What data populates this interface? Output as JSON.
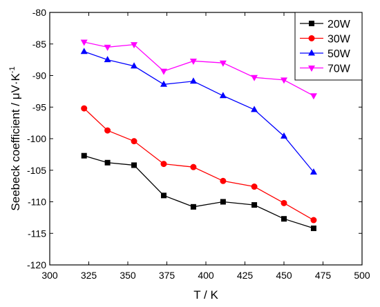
{
  "chart_data": {
    "type": "line",
    "title": "",
    "xlabel": "T / K",
    "ylabel_main": "Seebeck coefficient / μV·K",
    "ylabel_sup": "-1",
    "xlim": [
      300,
      500
    ],
    "ylim": [
      -120,
      -80
    ],
    "xticks": [
      "300",
      "325",
      "350",
      "375",
      "400",
      "425",
      "450",
      "475",
      "500"
    ],
    "yticks": [
      "-80",
      "-85",
      "-90",
      "-95",
      "-100",
      "-105",
      "-110",
      "-115",
      "-120"
    ],
    "x": [
      322,
      337,
      354,
      373,
      392,
      411,
      431,
      450,
      469
    ],
    "grid": false,
    "legend_position": "top-right",
    "series": [
      {
        "name": "20W",
        "color": "#000000",
        "marker": "square",
        "values": [
          -102.7,
          -103.8,
          -104.2,
          -109.0,
          -110.8,
          -110.0,
          -110.5,
          -112.7,
          -114.2
        ]
      },
      {
        "name": "30W",
        "color": "#ff0000",
        "marker": "circle",
        "values": [
          -95.2,
          -98.7,
          -100.4,
          -104.0,
          -104.5,
          -106.7,
          -107.6,
          -110.2,
          -112.9
        ]
      },
      {
        "name": "50W",
        "color": "#0000ff",
        "marker": "triangle-up",
        "values": [
          -86.2,
          -87.5,
          -88.5,
          -91.4,
          -90.9,
          -93.2,
          -95.4,
          -99.6,
          -105.3
        ]
      },
      {
        "name": "70W",
        "color": "#ff00ff",
        "marker": "triangle-down",
        "values": [
          -84.7,
          -85.5,
          -85.1,
          -89.3,
          -87.7,
          -88.0,
          -90.3,
          -90.7,
          -93.2
        ]
      }
    ]
  }
}
